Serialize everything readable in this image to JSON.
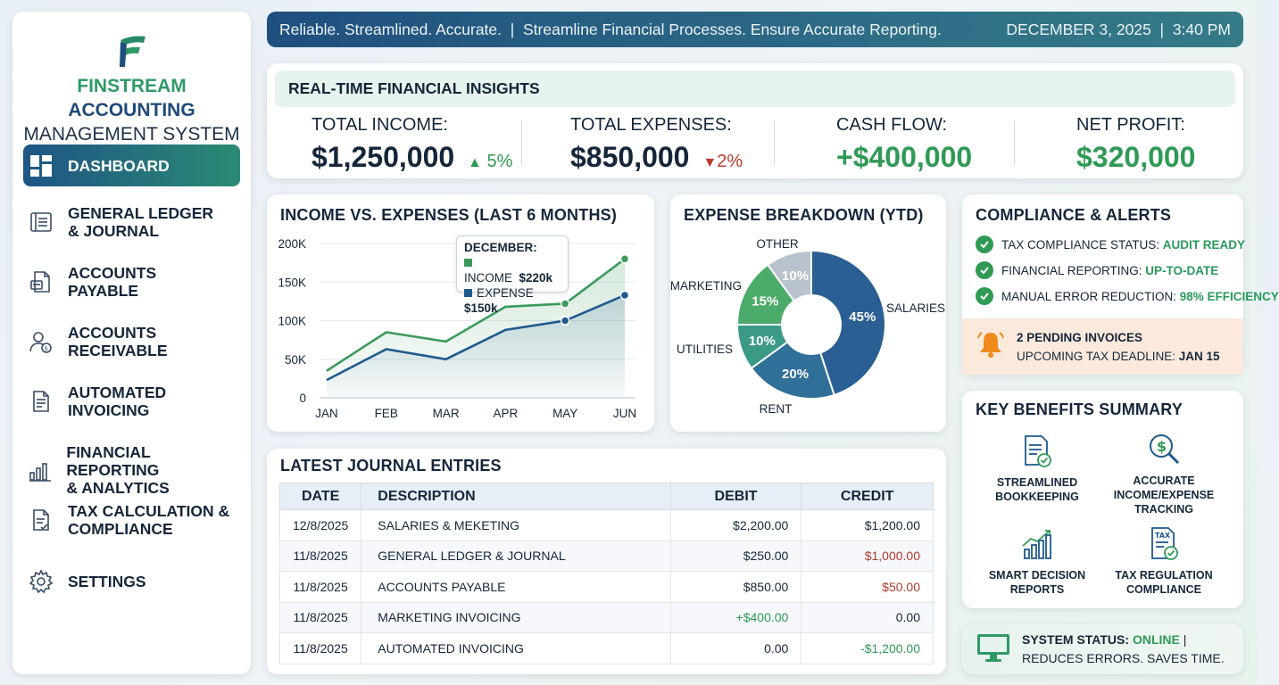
{
  "brand": {
    "line1_a": "FINSTREAM",
    "line1_b": " ACCOUNTING",
    "line2": "MANAGEMENT SYSTEM"
  },
  "nav": [
    {
      "label": "DASHBOARD",
      "icon": "dashboard-icon",
      "active": true
    },
    {
      "label": "GENERAL LEDGER\n& JOURNAL",
      "icon": "ledger-icon"
    },
    {
      "label": "ACCOUNTS\nPAYABLE",
      "icon": "payable-icon"
    },
    {
      "label": "ACCOUNTS\nRECEIVABLE",
      "icon": "receivable-icon"
    },
    {
      "label": "AUTOMATED\nINVOICING",
      "icon": "invoice-icon"
    },
    {
      "label": "FINANCIAL REPORTING\n& ANALYTICS",
      "icon": "bar-chart-icon"
    },
    {
      "label": "TAX CALCULATION &\nCOMPLIANCE",
      "icon": "tax-document-icon"
    },
    {
      "label": "SETTINGS",
      "icon": "gear-icon"
    }
  ],
  "banner": {
    "tagline": "Reliable. Streamlined. Accurate.  |  Streamline Financial Processes. Ensure Accurate Reporting.",
    "datetime": "DECEMBER 3, 2025  |  3:40 PM"
  },
  "insights": {
    "title": "REAL-TIME FINANCIAL INSIGHTS",
    "income": {
      "label": "TOTAL INCOME:",
      "value": "$1,250,000",
      "delta": "5%",
      "direction": "up"
    },
    "expenses": {
      "label": "TOTAL EXPENSES:",
      "value": "$850,000",
      "delta": "2%",
      "direction": "down"
    },
    "cashflow": {
      "label": "CASH FLOW:",
      "value": "+$400,000"
    },
    "profit": {
      "label": "NET PROFIT:",
      "value": "$320,000"
    }
  },
  "colors": {
    "green": "#2f9a55",
    "blue": "#1f5a8e",
    "red": "#c0392b",
    "accent_bg": "#e6f3ee"
  },
  "chart_data": [
    {
      "type": "line",
      "title": "INCOME VS. EXPENSES (LAST 6 MONTHS)",
      "categories": [
        "JAN",
        "FEB",
        "MAR",
        "APR",
        "MAY",
        "JUN"
      ],
      "series": [
        {
          "name": "INCOME",
          "color": "#3c9a5c",
          "values": [
            35000,
            85000,
            73000,
            118000,
            122000,
            180000
          ]
        },
        {
          "name": "EXPENSE",
          "color": "#1f5a8e",
          "values": [
            23000,
            63000,
            50000,
            88000,
            100000,
            133000
          ]
        }
      ],
      "ylim": [
        0,
        200000
      ],
      "yticks": [
        "0",
        "50K",
        "100K",
        "150K",
        "200K"
      ],
      "tooltip": {
        "title": "DECEMBER:",
        "income_label": "INCOME",
        "income_value": "$220k",
        "expense_label": "EXPENSE",
        "expense_value": "$150k"
      }
    },
    {
      "type": "pie",
      "title": "EXPENSE BREAKDOWN (YTD)",
      "donut": true,
      "slices": [
        {
          "label": "SALARIES",
          "value": 45,
          "text": "45%",
          "color": "#2a5f94"
        },
        {
          "label": "RENT",
          "value": 20,
          "text": "20%",
          "color": "#2f6f98"
        },
        {
          "label": "UTILITIES",
          "value": 10,
          "text": "10%",
          "color": "#3a9a86"
        },
        {
          "label": "MARKETING",
          "value": 15,
          "text": "15%",
          "color": "#4cab6a"
        },
        {
          "label": "OTHER",
          "value": 10,
          "text": "10%",
          "color": "#b9c3cd"
        }
      ]
    }
  ],
  "compliance": {
    "title": "COMPLIANCE & ALERTS",
    "items": [
      {
        "label": "TAX COMPLIANCE STATUS: ",
        "value": "AUDIT READY"
      },
      {
        "label": "FINANCIAL REPORTING: ",
        "value": "UP-TO-DATE"
      },
      {
        "label": "MANUAL ERROR REDUCTION: ",
        "value": "98% EFFICIENCY"
      }
    ],
    "alert_line1": "2 PENDING INVOICES",
    "alert_line2_a": "UPCOMING TAX DEADLINE: ",
    "alert_line2_b": "JAN 15"
  },
  "journal": {
    "title": "LATEST JOURNAL ENTRIES",
    "columns": [
      "DATE",
      "DESCRIPTION",
      "DEBIT",
      "CREDIT"
    ],
    "rows": [
      {
        "date": "12/8/2025",
        "desc": "SALARIES & MEKETING",
        "debit": "$2,200.00",
        "credit": "$1,200.00",
        "debit_color": "#15263a",
        "credit_color": "#15263a"
      },
      {
        "date": "11/8/2025",
        "desc": "GENERAL LEDGER & JOURNAL",
        "debit": "$250.00",
        "credit": "$1,000.00",
        "debit_color": "#15263a",
        "credit_color": "#b03a2e"
      },
      {
        "date": "11/8/2025",
        "desc": "ACCOUNTS PAYABLE",
        "debit": "$850.00",
        "credit": "$50.00",
        "debit_color": "#15263a",
        "credit_color": "#b03a2e"
      },
      {
        "date": "11/8/2025",
        "desc": "MARKETING INVOICING",
        "debit": "+$400.00",
        "credit": "0.00",
        "debit_color": "#2f9a55",
        "credit_color": "#15263a"
      },
      {
        "date": "11/8/2025",
        "desc": "AUTOMATED INVOICING",
        "debit": "0.00",
        "credit": "-$1,200.00",
        "debit_color": "#15263a",
        "credit_color": "#2f9a55"
      }
    ]
  },
  "benefits": {
    "title": "KEY BENEFITS SUMMARY",
    "items": [
      {
        "label": "STREAMLINED\nBOOKKEEPING",
        "icon": "bookkeeping-icon"
      },
      {
        "label": "ACCURATE\nINCOME/EXPENSE\nTRACKING",
        "icon": "magnifier-dollar-icon"
      },
      {
        "label": "SMART DECISION\nREPORTS",
        "icon": "growth-chart-icon"
      },
      {
        "label": "TAX REGULATION\nCOMPLIANCE",
        "icon": "tax-check-icon"
      }
    ]
  },
  "status": {
    "label": "SYSTEM STATUS: ",
    "value": "ONLINE",
    "suffix": " |",
    "line2": "REDUCES ERRORS. SAVES TIME."
  }
}
